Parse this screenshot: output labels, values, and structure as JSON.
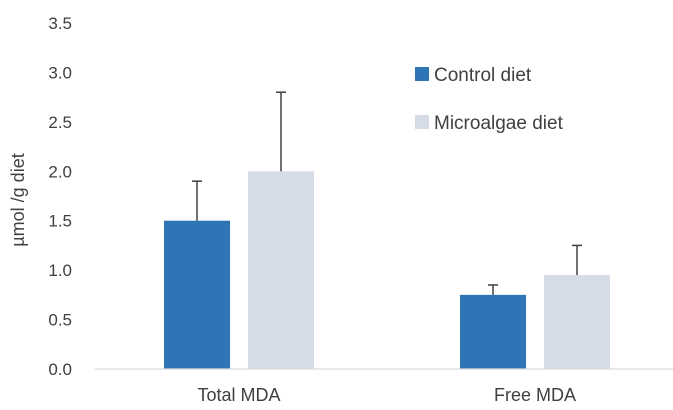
{
  "chart_data": {
    "type": "bar",
    "title": "",
    "xlabel": "",
    "ylabel": "µmol /g diet",
    "categories": [
      "Total MDA",
      "Free MDA"
    ],
    "series": [
      {
        "name": "Control diet",
        "values": [
          1.5,
          0.75
        ],
        "error": [
          0.4,
          0.1
        ],
        "color": "#2e75b6"
      },
      {
        "name": "Microalgae diet",
        "values": [
          2.0,
          0.95
        ],
        "error": [
          0.8,
          0.3
        ],
        "color": "#d6dce5"
      }
    ],
    "ylim": [
      0,
      3.5
    ],
    "yticks": [
      0.0,
      0.5,
      1.0,
      1.5,
      2.0,
      2.5,
      3.0,
      3.5
    ],
    "ytick_labels": [
      "0.0",
      "0.5",
      "1.0",
      "1.5",
      "2.0",
      "2.5",
      "3.0",
      "3.5"
    ],
    "grid": false,
    "legend": "top-right",
    "error_bars": "upper"
  }
}
